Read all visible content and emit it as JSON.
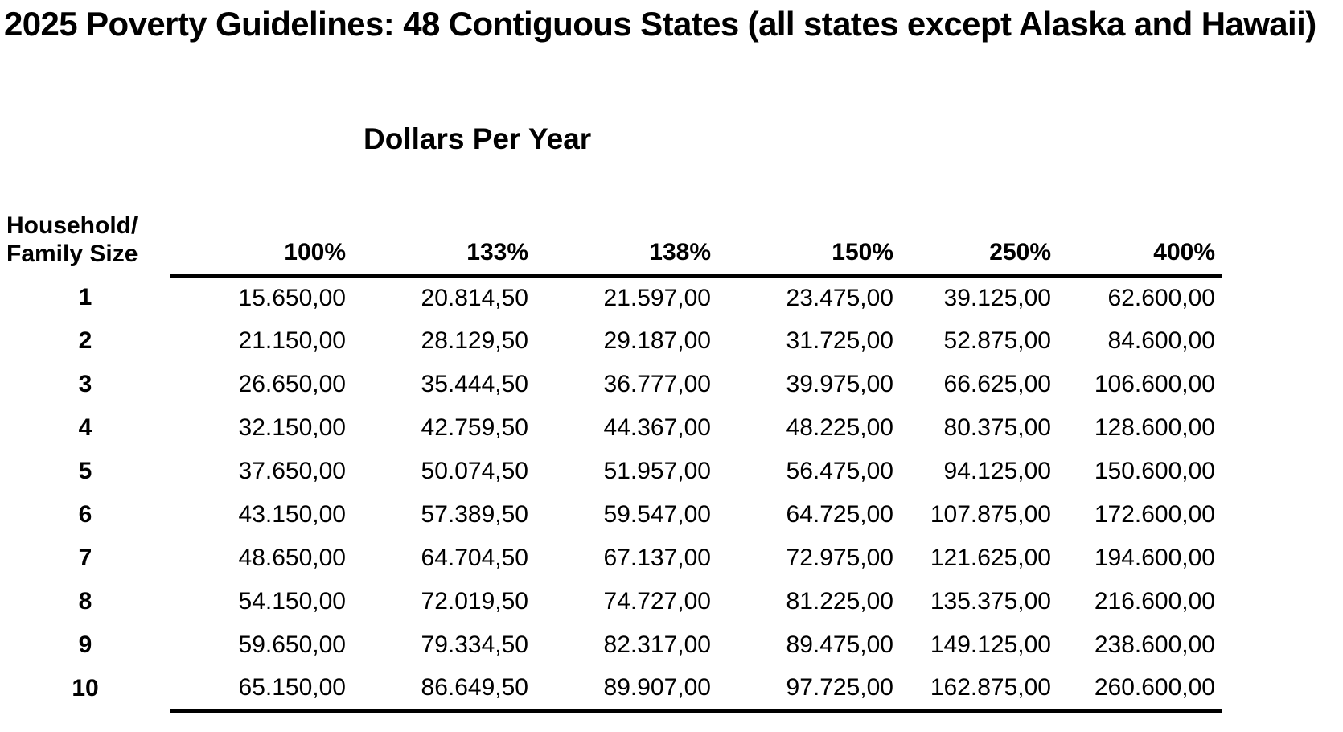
{
  "page": {
    "title": "2025 Poverty Guidelines: 48 Contiguous States (all states except Alaska and Hawaii)",
    "subtitle": "Dollars Per Year",
    "text_color": "#000000",
    "background_color": "#ffffff"
  },
  "table": {
    "row_header": {
      "line1": "Household/",
      "line2": "Family Size"
    },
    "columns": [
      "100%",
      "133%",
      "138%",
      "150%",
      "250%",
      "400%"
    ],
    "rows": [
      {
        "size": "1",
        "values": [
          "15.650,00",
          "20.814,50",
          "21.597,00",
          "23.475,00",
          "39.125,00",
          "62.600,00"
        ]
      },
      {
        "size": "2",
        "values": [
          "21.150,00",
          "28.129,50",
          "29.187,00",
          "31.725,00",
          "52.875,00",
          "84.600,00"
        ]
      },
      {
        "size": "3",
        "values": [
          "26.650,00",
          "35.444,50",
          "36.777,00",
          "39.975,00",
          "66.625,00",
          "106.600,00"
        ]
      },
      {
        "size": "4",
        "values": [
          "32.150,00",
          "42.759,50",
          "44.367,00",
          "48.225,00",
          "80.375,00",
          "128.600,00"
        ]
      },
      {
        "size": "5",
        "values": [
          "37.650,00",
          "50.074,50",
          "51.957,00",
          "56.475,00",
          "94.125,00",
          "150.600,00"
        ]
      },
      {
        "size": "6",
        "values": [
          "43.150,00",
          "57.389,50",
          "59.547,00",
          "64.725,00",
          "107.875,00",
          "172.600,00"
        ]
      },
      {
        "size": "7",
        "values": [
          "48.650,00",
          "64.704,50",
          "67.137,00",
          "72.975,00",
          "121.625,00",
          "194.600,00"
        ]
      },
      {
        "size": "8",
        "values": [
          "54.150,00",
          "72.019,50",
          "74.727,00",
          "81.225,00",
          "135.375,00",
          "216.600,00"
        ]
      },
      {
        "size": "9",
        "values": [
          "59.650,00",
          "79.334,50",
          "82.317,00",
          "89.475,00",
          "149.125,00",
          "238.600,00"
        ]
      },
      {
        "size": "10",
        "values": [
          "65.150,00",
          "86.649,50",
          "89.907,00",
          "97.725,00",
          "162.875,00",
          "260.600,00"
        ]
      }
    ]
  }
}
